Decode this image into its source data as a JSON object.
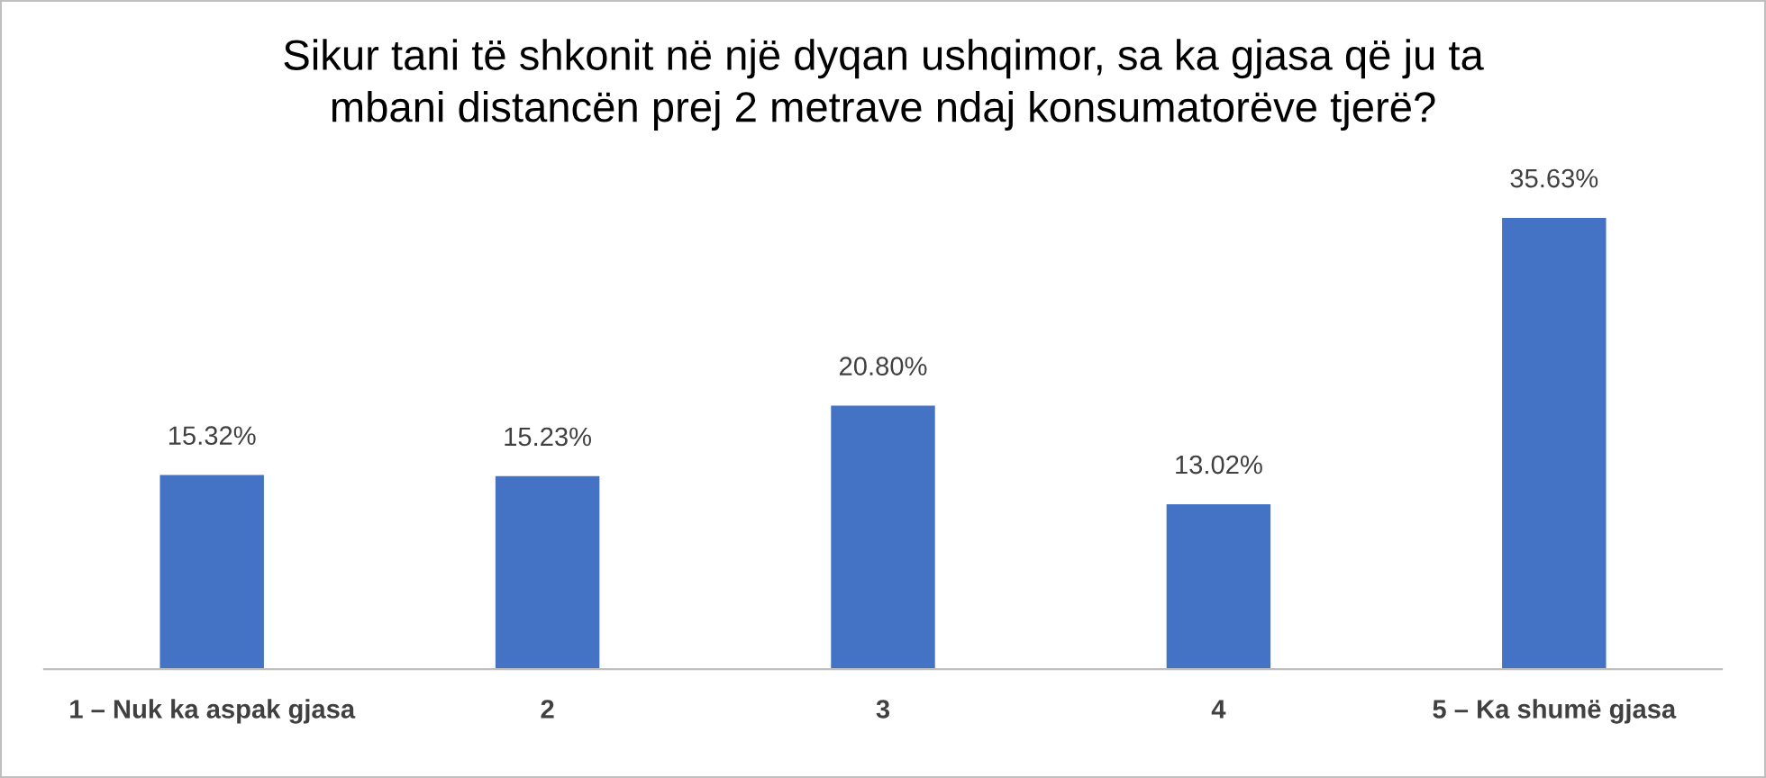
{
  "chart_data": {
    "type": "bar",
    "title": "Sikur tani të shkonit në një dyqan ushqimor, sa ka gjasa që ju ta\nmbani distancën prej 2 metrave ndaj konsumatorëve tjerë?",
    "categories": [
      "1 – Nuk ka aspak gjasa",
      "2",
      "3",
      "4",
      "5 – Ka shumë gjasa"
    ],
    "values": [
      15.32,
      15.23,
      20.8,
      13.02,
      35.63
    ],
    "value_labels": [
      "15.32%",
      "15.23%",
      "20.80%",
      "13.02%",
      "35.63%"
    ],
    "color": "#4472c4",
    "tick_labels": "x"
  }
}
